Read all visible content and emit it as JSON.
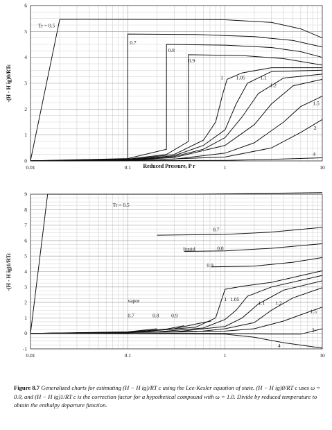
{
  "chart_data": [
    {
      "type": "line",
      "xlabel": "Reduced Pressure, P r",
      "ylabel": "-(H - H ig)0/RTc",
      "xscale": "log",
      "xlim": [
        0.01,
        10
      ],
      "ylim": [
        0,
        6
      ],
      "xticks": [
        "0.01",
        "0.1",
        "1",
        "10"
      ],
      "yticks": [
        "0",
        "1",
        "2",
        "3",
        "4",
        "5",
        "6"
      ],
      "grid": true,
      "series": [
        {
          "name": "Tr = 0.5",
          "label_at": [
            0.012,
            5.15
          ],
          "points": [
            [
              0.01,
              0.01
            ],
            [
              0.02,
              5.47
            ],
            [
              0.2,
              5.46
            ],
            [
              1,
              5.45
            ],
            [
              3,
              5.35
            ],
            [
              6,
              5.1
            ],
            [
              10,
              4.75
            ]
          ]
        },
        {
          "name": "0.7",
          "label_at": [
            0.105,
            4.5
          ],
          "points": [
            [
              0.01,
              0.003
            ],
            [
              0.05,
              0.02
            ],
            [
              0.1,
              0.05
            ],
            [
              0.1,
              4.9
            ],
            [
              0.5,
              4.88
            ],
            [
              2,
              4.8
            ],
            [
              5,
              4.65
            ],
            [
              10,
              4.4
            ]
          ]
        },
        {
          "name": "0.8",
          "label_at": [
            0.26,
            4.2
          ],
          "points": [
            [
              0.01,
              0.004
            ],
            [
              0.1,
              0.09
            ],
            [
              0.25,
              0.45
            ],
            [
              0.25,
              4.5
            ],
            [
              1,
              4.47
            ],
            [
              3,
              4.38
            ],
            [
              6,
              4.22
            ],
            [
              10,
              4.0
            ]
          ]
        },
        {
          "name": "0.9",
          "label_at": [
            0.42,
            3.8
          ],
          "points": [
            [
              0.01,
              0.004
            ],
            [
              0.1,
              0.07
            ],
            [
              0.25,
              0.25
            ],
            [
              0.42,
              0.75
            ],
            [
              0.42,
              4.1
            ],
            [
              1.5,
              4.07
            ],
            [
              4,
              3.95
            ],
            [
              10,
              3.7
            ]
          ]
        },
        {
          "name": "1",
          "label_at": [
            0.9,
            3.15
          ],
          "points": [
            [
              0.01,
              0.003
            ],
            [
              0.1,
              0.05
            ],
            [
              0.3,
              0.25
            ],
            [
              0.6,
              0.8
            ],
            [
              0.8,
              1.5
            ],
            [
              0.95,
              2.6
            ],
            [
              1.05,
              3.15
            ],
            [
              1.5,
              3.4
            ],
            [
              3,
              3.6
            ],
            [
              10,
              3.6
            ]
          ]
        },
        {
          "name": "1.05",
          "label_at": [
            1.3,
            3.15
          ],
          "points": [
            [
              0.01,
              0.003
            ],
            [
              0.1,
              0.04
            ],
            [
              0.3,
              0.2
            ],
            [
              0.6,
              0.6
            ],
            [
              1,
              1.2
            ],
            [
              1.3,
              2.2
            ],
            [
              1.7,
              3.0
            ],
            [
              3,
              3.45
            ],
            [
              10,
              3.5
            ]
          ]
        },
        {
          "name": "1.1",
          "label_at": [
            2.3,
            3.15
          ],
          "points": [
            [
              0.01,
              0.003
            ],
            [
              0.1,
              0.035
            ],
            [
              0.3,
              0.17
            ],
            [
              0.6,
              0.45
            ],
            [
              1,
              0.9
            ],
            [
              1.5,
              1.7
            ],
            [
              2.2,
              2.6
            ],
            [
              4,
              3.2
            ],
            [
              10,
              3.35
            ]
          ]
        },
        {
          "name": "1.2",
          "label_at": [
            2.9,
            2.85
          ],
          "points": [
            [
              0.01,
              0.002
            ],
            [
              0.1,
              0.03
            ],
            [
              0.3,
              0.13
            ],
            [
              1,
              0.6
            ],
            [
              2,
              1.4
            ],
            [
              3,
              2.2
            ],
            [
              5,
              2.9
            ],
            [
              10,
              3.15
            ]
          ]
        },
        {
          "name": "1.5",
          "label_at": [
            8,
            2.15
          ],
          "points": [
            [
              0.01,
              0.002
            ],
            [
              0.1,
              0.02
            ],
            [
              0.3,
              0.07
            ],
            [
              1,
              0.3
            ],
            [
              2,
              0.7
            ],
            [
              4,
              1.5
            ],
            [
              6,
              2.1
            ],
            [
              10,
              2.5
            ]
          ]
        },
        {
          "name": "2",
          "label_at": [
            8.2,
            1.2
          ],
          "points": [
            [
              0.01,
              0.001
            ],
            [
              0.1,
              0.01
            ],
            [
              1,
              0.15
            ],
            [
              3,
              0.5
            ],
            [
              6,
              1.1
            ],
            [
              10,
              1.6
            ]
          ]
        },
        {
          "name": "4",
          "label_at": [
            8,
            0.2
          ],
          "points": [
            [
              0.01,
              0.0
            ],
            [
              1,
              0.02
            ],
            [
              3,
              0.06
            ],
            [
              10,
              0.12
            ]
          ]
        }
      ]
    },
    {
      "type": "line",
      "xlabel": "Reduced Pressure, P r",
      "ylabel": "-(H - H ig)1/RTc",
      "xscale": "log",
      "xlim": [
        0.01,
        10
      ],
      "ylim": [
        -1,
        9
      ],
      "xticks": [
        "0.01",
        "0.1",
        "1",
        "10"
      ],
      "yticks": [
        "-1",
        "0",
        "1",
        "2",
        "3",
        "4",
        "5",
        "6",
        "7",
        "8",
        "9"
      ],
      "grid": true,
      "annotations": [
        {
          "text": "liquid",
          "at": [
            0.37,
            5.35
          ]
        },
        {
          "text": "vapor",
          "at": [
            0.1,
            2.0
          ]
        }
      ],
      "series": [
        {
          "name": "Tr = 0.5",
          "label_at": [
            0.07,
            8.2
          ],
          "points": [
            [
              0.01,
              0.0
            ],
            [
              0.015,
              9.0
            ],
            [
              0.5,
              9.0
            ],
            [
              10,
              9.1
            ]
          ]
        },
        {
          "name": "0.7",
          "label_at": [
            0.75,
            6.6
          ],
          "points": [
            [
              0.2,
              6.35
            ],
            [
              1,
              6.4
            ],
            [
              3,
              6.55
            ],
            [
              10,
              6.85
            ]
          ]
        },
        {
          "name": "0.8",
          "label_at": [
            0.83,
            5.4
          ],
          "points": [
            [
              0.38,
              5.3
            ],
            [
              1,
              5.33
            ],
            [
              3,
              5.5
            ],
            [
              10,
              5.8
            ]
          ]
        },
        {
          "name": "0.9",
          "label_at": [
            0.65,
            4.3
          ],
          "points": [
            [
              0.72,
              4.3
            ],
            [
              2,
              4.35
            ],
            [
              5,
              4.6
            ],
            [
              10,
              4.9
            ]
          ]
        },
        {
          "name": "0.7 vapor",
          "label_at": [
            0.1,
            1.05
          ],
          "points": [
            [
              0.01,
              0.0
            ],
            [
              0.1,
              0.1
            ],
            [
              0.2,
              0.3
            ]
          ]
        },
        {
          "name": "0.8 vapor",
          "label_at": [
            0.18,
            1.05
          ],
          "points": [
            [
              0.01,
              0.0
            ],
            [
              0.1,
              0.08
            ],
            [
              0.25,
              0.28
            ],
            [
              0.38,
              0.5
            ]
          ]
        },
        {
          "name": "0.9 vapor",
          "label_at": [
            0.28,
            1.05
          ],
          "points": [
            [
              0.01,
              0.0
            ],
            [
              0.1,
              0.05
            ],
            [
              0.3,
              0.3
            ],
            [
              0.5,
              0.6
            ],
            [
              0.72,
              0.8
            ]
          ]
        },
        {
          "name": "1",
          "label_at": [
            0.98,
            2.1
          ],
          "points": [
            [
              0.01,
              0.0
            ],
            [
              0.1,
              0.03
            ],
            [
              0.5,
              0.4
            ],
            [
              0.8,
              1.0
            ],
            [
              1,
              2.85
            ],
            [
              1.5,
              3.05
            ],
            [
              3,
              3.3
            ],
            [
              10,
              4.05
            ]
          ]
        },
        {
          "name": "1.05",
          "label_at": [
            1.13,
            2.1
          ],
          "points": [
            [
              0.01,
              0.0
            ],
            [
              0.2,
              0.1
            ],
            [
              0.6,
              0.35
            ],
            [
              1,
              0.9
            ],
            [
              1.3,
              1.5
            ],
            [
              1.7,
              2.4
            ],
            [
              3,
              3.0
            ],
            [
              10,
              3.75
            ]
          ]
        },
        {
          "name": "1.1",
          "label_at": [
            2.2,
            1.85
          ],
          "points": [
            [
              0.01,
              0.0
            ],
            [
              0.3,
              0.1
            ],
            [
              1,
              0.45
            ],
            [
              1.5,
              1.0
            ],
            [
              2.2,
              1.9
            ],
            [
              4,
              2.8
            ],
            [
              10,
              3.4
            ]
          ]
        },
        {
          "name": "1.2",
          "label_at": [
            3.3,
            1.85
          ],
          "points": [
            [
              0.01,
              0.0
            ],
            [
              0.5,
              0.1
            ],
            [
              1,
              0.3
            ],
            [
              2,
              0.7
            ],
            [
              3,
              1.5
            ],
            [
              5,
              2.3
            ],
            [
              10,
              2.95
            ]
          ]
        },
        {
          "name": "1.5",
          "label_at": [
            7.5,
            1.3
          ],
          "points": [
            [
              0.01,
              0.0
            ],
            [
              1,
              0.15
            ],
            [
              2,
              0.3
            ],
            [
              4,
              0.8
            ],
            [
              6,
              1.2
            ],
            [
              10,
              1.7
            ]
          ]
        },
        {
          "name": "2",
          "label_at": [
            7.8,
            0.1
          ],
          "points": [
            [
              0.01,
              0.0
            ],
            [
              1,
              0.0
            ],
            [
              3,
              -0.05
            ],
            [
              6,
              -0.05
            ],
            [
              10,
              0.3
            ]
          ]
        },
        {
          "name": "4",
          "label_at": [
            3.5,
            -0.9
          ],
          "points": [
            [
              0.01,
              0.0
            ],
            [
              1,
              -0.05
            ],
            [
              2,
              -0.25
            ],
            [
              4,
              -0.6
            ],
            [
              10,
              -0.95
            ]
          ]
        }
      ]
    }
  ],
  "caption": {
    "figure_number": "Figure 8.7",
    "text": "Generalized charts for estimating (H − H ig)/RT c using the Lee-Kesler equation of state. (H − H ig)0/RT c uses ω = 0.0, and (H − H ig)1/RT c is the correction factor for a hypothetical compound with ω = 1.0. Divide by reduced temperature to obtain the enthalpy departure function."
  }
}
